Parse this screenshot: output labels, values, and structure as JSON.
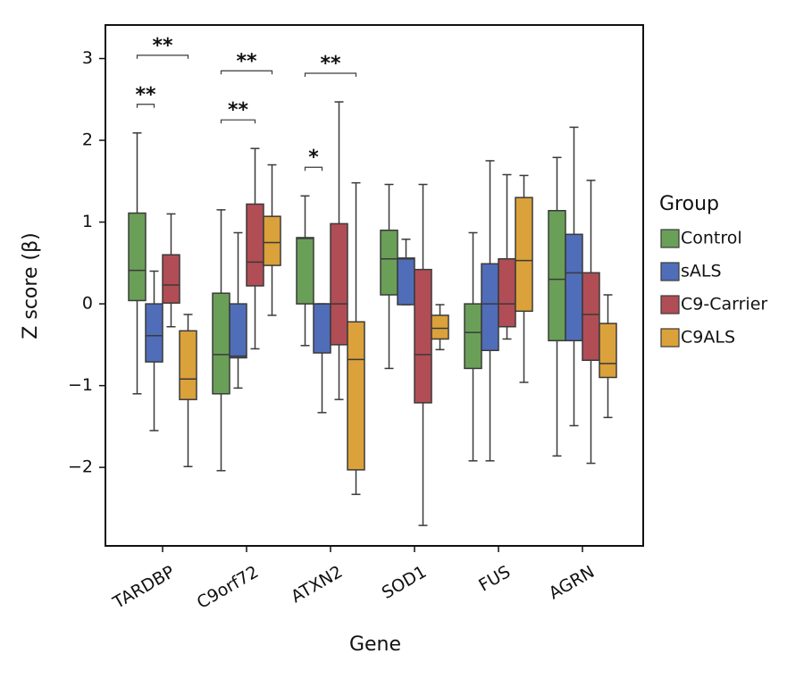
{
  "chart_data": {
    "type": "box",
    "x_label": "Gene",
    "y_label": "Z score (β)",
    "categories": [
      "TARDBP",
      "C9orf72",
      "ATXN2",
      "SOD1",
      "FUS",
      "AGRN"
    ],
    "legend_title": "Group",
    "legend": "right",
    "ylim": [
      -2.96,
      3.41
    ],
    "yticks": [
      {
        "value": -2,
        "label": "−2"
      },
      {
        "value": -1,
        "label": "−1"
      },
      0,
      1,
      2,
      3
    ],
    "series": [
      {
        "name": "Control",
        "color": "#6a9f58",
        "values": [
          {
            "whislo": -1.1,
            "q1": 0.04,
            "med": 0.41,
            "q3": 1.11,
            "whishi": 2.09
          },
          {
            "whislo": -2.04,
            "q1": -1.1,
            "med": -0.62,
            "q3": 0.13,
            "whishi": 1.15
          },
          {
            "whislo": -0.51,
            "q1": 0,
            "med": 0.8,
            "q3": 0.81,
            "whishi": 1.32
          },
          {
            "whislo": -0.79,
            "q1": 0.11,
            "med": 0.55,
            "q3": 0.9,
            "whishi": 1.46
          },
          {
            "whislo": -1.92,
            "q1": -0.79,
            "med": -0.35,
            "q3": 0,
            "whishi": 0.87
          },
          {
            "whislo": -1.86,
            "q1": -0.45,
            "med": 0.3,
            "q3": 1.14,
            "whishi": 1.79
          }
        ]
      },
      {
        "name": "sALS",
        "color": "#4f6db8",
        "values": [
          {
            "whislo": -1.55,
            "q1": -0.71,
            "med": -0.39,
            "q3": 0,
            "whishi": 0.4
          },
          {
            "whislo": -1.03,
            "q1": -0.66,
            "med": -0.64,
            "q3": 0,
            "whishi": 0.87
          },
          {
            "whislo": -1.33,
            "q1": -0.6,
            "med": 0,
            "q3": 0,
            "whishi": 0
          },
          {
            "whislo": -0.01,
            "q1": -0.01,
            "med": 0.55,
            "q3": 0.56,
            "whishi": 0.79
          },
          {
            "whislo": -1.92,
            "q1": -0.57,
            "med": 0,
            "q3": 0.49,
            "whishi": 1.75
          },
          {
            "whislo": -1.49,
            "q1": -0.45,
            "med": 0.38,
            "q3": 0.85,
            "whishi": 2.16
          }
        ]
      },
      {
        "name": "C9-Carrier",
        "color": "#b14d55",
        "values": [
          {
            "whislo": -0.28,
            "q1": 0.01,
            "med": 0.23,
            "q3": 0.6,
            "whishi": 1.1
          },
          {
            "whislo": -0.55,
            "q1": 0.22,
            "med": 0.51,
            "q3": 1.22,
            "whishi": 1.9
          },
          {
            "whislo": -1.17,
            "q1": -0.5,
            "med": 0,
            "q3": 0.98,
            "whishi": 2.47
          },
          {
            "whislo": -2.71,
            "q1": -1.21,
            "med": -0.62,
            "q3": 0.42,
            "whishi": 1.46
          },
          {
            "whislo": -0.43,
            "q1": -0.28,
            "med": 0,
            "q3": 0.55,
            "whishi": 1.58
          },
          {
            "whislo": -1.95,
            "q1": -0.69,
            "med": -0.13,
            "q3": 0.38,
            "whishi": 1.51
          }
        ]
      },
      {
        "name": "C9ALS",
        "color": "#dba13a",
        "values": [
          {
            "whislo": -1.99,
            "q1": -1.17,
            "med": -0.92,
            "q3": -0.33,
            "whishi": -0.13
          },
          {
            "whislo": -0.14,
            "q1": 0.47,
            "med": 0.75,
            "q3": 1.07,
            "whishi": 1.7
          },
          {
            "whislo": -2.33,
            "q1": -2.03,
            "med": -0.68,
            "q3": -0.22,
            "whishi": 1.48
          },
          {
            "whislo": -0.56,
            "q1": -0.43,
            "med": -0.3,
            "q3": -0.14,
            "whishi": -0.01
          },
          {
            "whislo": -0.96,
            "q1": -0.09,
            "med": 0.53,
            "q3": 1.3,
            "whishi": 1.57
          },
          {
            "whislo": -1.39,
            "q1": -0.9,
            "med": -0.73,
            "q3": -0.24,
            "whishi": 0.11
          }
        ]
      }
    ],
    "annotations": [
      {
        "text": "**",
        "category": "TARDBP",
        "between": [
          "Control",
          "sALS"
        ]
      },
      {
        "text": "**",
        "category": "TARDBP",
        "between": [
          "Control",
          "C9ALS"
        ]
      },
      {
        "text": "**",
        "category": "C9orf72",
        "between": [
          "Control",
          "C9-Carrier"
        ]
      },
      {
        "text": "**",
        "category": "C9orf72",
        "between": [
          "Control",
          "C9ALS"
        ]
      },
      {
        "text": "*",
        "category": "ATXN2",
        "between": [
          "Control",
          "sALS"
        ]
      },
      {
        "text": "**",
        "category": "ATXN2",
        "between": [
          "Control",
          "C9ALS"
        ]
      }
    ]
  }
}
